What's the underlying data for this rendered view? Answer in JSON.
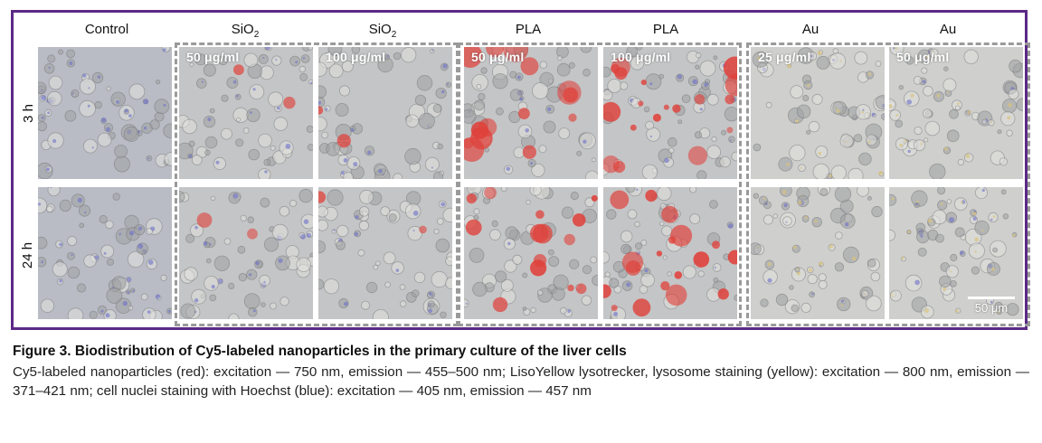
{
  "figure": {
    "columns": [
      {
        "name": "Control",
        "sub": ""
      },
      {
        "name": "SiO",
        "sub": "2"
      },
      {
        "name": "SiO",
        "sub": "2"
      },
      {
        "name": "PLA",
        "sub": ""
      },
      {
        "name": "PLA",
        "sub": ""
      },
      {
        "name": "Au",
        "sub": ""
      },
      {
        "name": "Au",
        "sub": ""
      }
    ],
    "rows": [
      "3 h",
      "24 h"
    ],
    "concentrations": [
      "",
      "50 μg/ml",
      "100 μg/ml",
      "50 μg/ml",
      "100 μg/ml",
      "25 μg/ml",
      "50 μg/ml"
    ],
    "scale_bar": "50 μm",
    "colors": {
      "frame": "#5b2a86",
      "group_border": "#9a9a9a",
      "nanoparticles_red": "#e0403a",
      "lysosome_yellow": "#d8c37a",
      "nuclei_blue": "#6c6fc8"
    }
  },
  "caption": {
    "title": "Figure 3. Biodistribution of Cy5-labeled nanoparticles in the primary culture of the liver cells",
    "body": "Cy5-labeled nanoparticles (red): excitation — 750 nm, emission — 455–500 nm; LisoYellow lysotrecker, lysosome staining (yellow): excitation — 800 nm, emission — 371–421 nm; cell nuclei staining with Hoechst (blue): excitation — 405 nm, emission — 457 nm"
  }
}
